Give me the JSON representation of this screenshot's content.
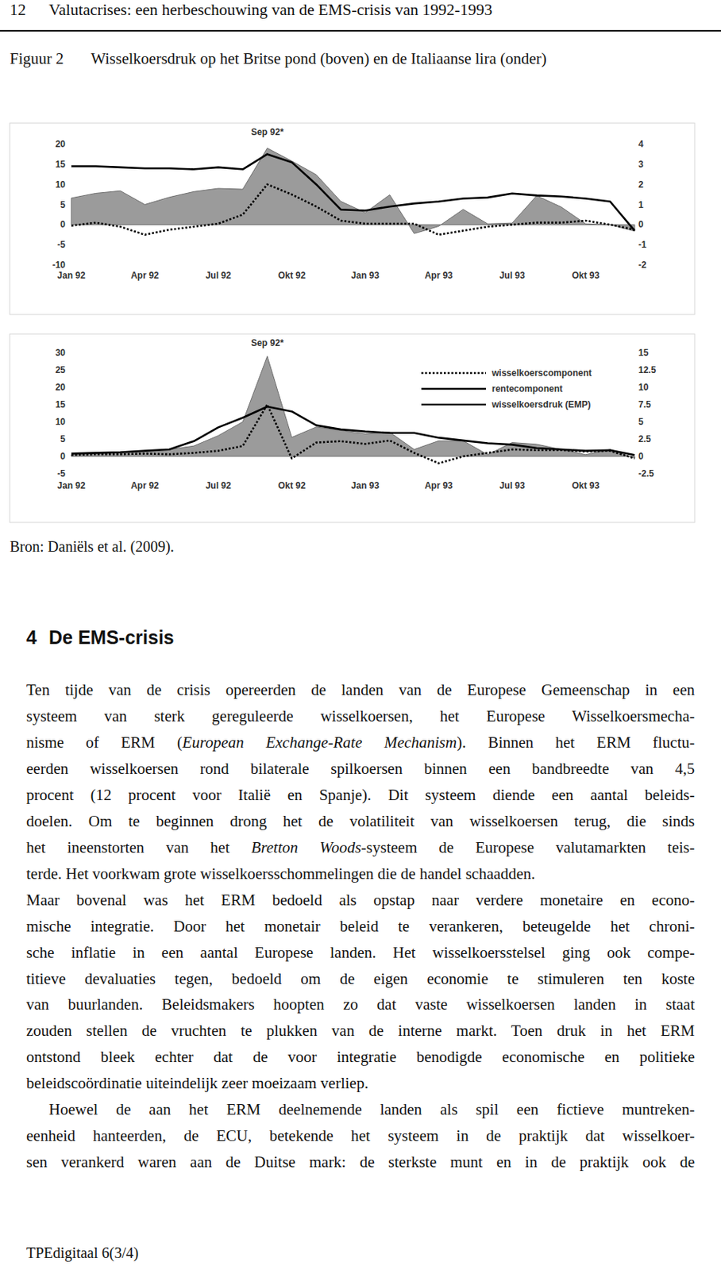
{
  "header": {
    "page_number": "12",
    "running_title": "Valutacrises: een herbeschouwing van de EMS-crisis van 1992-1993"
  },
  "figure": {
    "label": "Figuur 2",
    "caption": "Wisselkoersdruk op het Britse pond (boven) en de Italiaanse lira (onder)"
  },
  "chart_data": [
    {
      "type": "line",
      "categories": [
        "Jan 92",
        null,
        null,
        "Apr 92",
        null,
        null,
        "Jul 92",
        null,
        null,
        "Okt 92",
        null,
        null,
        "Jan 93",
        null,
        null,
        "Apr 93",
        null,
        null,
        "Jul 93",
        null,
        null,
        "Okt 93",
        null,
        null
      ],
      "annotations": [
        {
          "text": "Sep 92*",
          "x": 8
        }
      ],
      "series": [
        {
          "type": "line",
          "line_style": "dotted",
          "color": "#000000",
          "axis": "y2",
          "values": [
            -0.05,
            0.1,
            -0.1,
            -0.5,
            -0.25,
            -0.1,
            0.05,
            0.5,
            2.0,
            1.5,
            0.9,
            0.2,
            0.05,
            0.05,
            0.05,
            -0.5,
            -0.3,
            -0.1,
            0.0,
            0.1,
            0.1,
            0.2,
            0.0,
            -0.25
          ]
        },
        {
          "type": "line",
          "line_style": "solid",
          "color": "#000000",
          "axis": "y2",
          "values": [
            2.9,
            2.9,
            2.85,
            2.8,
            2.8,
            2.75,
            2.85,
            2.75,
            3.5,
            3.1,
            2.0,
            0.75,
            0.7,
            0.9,
            1.05,
            1.15,
            1.3,
            1.35,
            1.55,
            1.45,
            1.4,
            1.3,
            1.15,
            -0.3
          ]
        },
        {
          "type": "area",
          "color": "#9b9b9b",
          "values": [
            6.6,
            7.8,
            8.4,
            5.0,
            6.8,
            8.2,
            9.0,
            8.8,
            19.0,
            15.8,
            12.4,
            5.8,
            3.0,
            7.4,
            -2.2,
            -0.4,
            3.8,
            0.2,
            0.4,
            7.2,
            4.4,
            0.2,
            0.0,
            -1.6
          ]
        }
      ],
      "ylim": [
        -10,
        20
      ],
      "yticks": [
        -10,
        -5,
        0,
        5,
        10,
        15,
        20
      ],
      "y2lim": [
        -2,
        4
      ],
      "y2ticks": [
        -2,
        -1,
        0,
        1,
        2,
        3,
        4
      ],
      "grid": false
    },
    {
      "type": "line",
      "categories": [
        "Jan 92",
        null,
        null,
        "Apr 92",
        null,
        null,
        "Jul 92",
        null,
        null,
        "Okt 92",
        null,
        null,
        "Jan 93",
        null,
        null,
        "Apr 93",
        null,
        null,
        "Jul 93",
        null,
        null,
        "Okt 93",
        null,
        null
      ],
      "annotations": [
        {
          "text": "Sep 92*",
          "x": 8
        }
      ],
      "series": [
        {
          "name": "wisselkoerscomponent",
          "type": "line",
          "line_style": "dotted",
          "color": "#000000",
          "axis": "y2",
          "values": [
            0.2,
            0.3,
            0.3,
            0.4,
            0.3,
            0.5,
            0.8,
            1.5,
            7.5,
            -0.3,
            2.0,
            2.2,
            1.8,
            2.3,
            0.5,
            -1.0,
            0.0,
            0.5,
            1.0,
            0.9,
            0.9,
            0.7,
            0.8,
            -0.3
          ]
        },
        {
          "name": "rentecomponent",
          "type": "line",
          "line_style": "solid",
          "color": "#000000",
          "axis": "y2",
          "values": [
            0.4,
            0.5,
            0.6,
            0.8,
            1.0,
            2.2,
            4.2,
            5.6,
            7.2,
            6.5,
            4.5,
            3.9,
            3.6,
            3.4,
            3.4,
            2.7,
            2.3,
            1.9,
            1.7,
            1.2,
            1.0,
            0.8,
            0.9,
            0.2
          ]
        },
        {
          "name": "wisselkoersdruk (EMP)",
          "type": "area",
          "color": "#9b9b9b",
          "values": [
            0.5,
            0.8,
            1.0,
            1.5,
            2.0,
            3.0,
            6.0,
            10.0,
            29.0,
            5.5,
            8.5,
            7.5,
            6.5,
            7.0,
            2.0,
            4.5,
            4.5,
            0.5,
            4.0,
            3.5,
            2.0,
            0.5,
            2.0,
            -0.5
          ]
        }
      ],
      "ylim": [
        -5,
        30
      ],
      "yticks": [
        -5,
        0,
        5,
        10,
        15,
        20,
        25,
        30
      ],
      "y2lim": [
        -2.5,
        15
      ],
      "y2ticks": [
        -2.5,
        0,
        2.5,
        5,
        7.5,
        10,
        12.5,
        15
      ],
      "grid": false,
      "legend": "top-right"
    }
  ],
  "source": "Bron: Daniëls et al. (2009).",
  "section": {
    "number": "4",
    "title": "De EMS-crisis"
  },
  "paragraphs": [
    [
      [
        "Ten tijde van de crisis opereerden de landen van de Europese Gemeenschap in een"
      ],
      [
        "systeem van sterk gereguleerde wisselkoersen, het Europese Wisselkoersmecha-"
      ],
      [
        "nisme of ERM (",
        {
          "text": "European Exchange-Rate Mechanism",
          "style": "italic"
        },
        "). Binnen het ERM fluctu-"
      ],
      [
        "eerden wisselkoersen rond bilaterale spilkoersen binnen een bandbreedte van 4,5"
      ],
      [
        "procent (12 procent voor Italië en Spanje). Dit systeem diende een aantal beleids-"
      ],
      [
        "doelen. Om te beginnen drong het de volatiliteit van wisselkoersen terug, die sinds"
      ],
      [
        "het ineenstorten van het ",
        {
          "text": "Bretton Woods",
          "style": "italic"
        },
        "-systeem de Europese valutamarkten teis-"
      ],
      [
        "terde. Het voorkwam grote wisselkoersschommelingen die de handel schaadden."
      ],
      [
        "Maar bovenal was het ERM bedoeld als opstap naar verdere monetaire en econo-"
      ],
      [
        "mische integratie. Door het monetair beleid te verankeren, beteugelde het chroni-"
      ],
      [
        "sche inflatie in een aantal Europese landen. Het wisselkoersstelsel ging ook compe-"
      ],
      [
        "titieve devaluaties tegen, bedoeld om de eigen economie te stimuleren ten koste"
      ],
      [
        "van buurlanden. Beleidsmakers hoopten zo dat vaste wisselkoersen landen in staat"
      ],
      [
        "zouden stellen de vruchten te plukken van de interne markt. Toen druk in het ERM"
      ],
      [
        "ontstond bleek echter dat de voor integratie benodigde economische en politieke"
      ],
      [
        "beleidscoördinatie uiteindelijk zeer moeizaam verliep."
      ]
    ],
    [
      [
        "Hoewel de aan het ERM deelnemende landen als spil een fictieve muntreken-"
      ],
      [
        "eenheid hanteerden, de ECU, betekende het systeem in de praktijk dat wisselkoer-"
      ],
      [
        "sen verankerd waren aan de Duitse mark: de sterkste munt en in de praktijk ook de"
      ]
    ]
  ],
  "footer": "TPEdigitaal 6(3/4)"
}
